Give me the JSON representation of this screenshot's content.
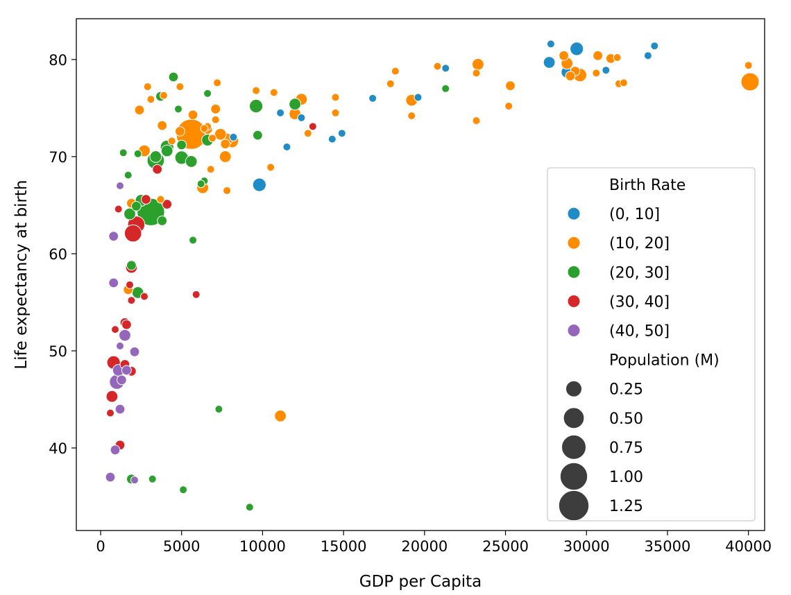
{
  "chart_data": {
    "type": "scatter",
    "title": "",
    "xlabel": "GDP per Capita",
    "ylabel": "Life expectancy at birth",
    "xlim": [
      -1500,
      41000
    ],
    "ylim": [
      31.5,
      84.2
    ],
    "xticks": [
      0,
      5000,
      10000,
      15000,
      20000,
      25000,
      30000,
      35000,
      40000
    ],
    "yticks": [
      40,
      50,
      60,
      70,
      80
    ],
    "grid": false,
    "legend_position": "lower-right",
    "legend": {
      "hue_title": "Birth Rate",
      "size_title": "Population (M)",
      "size_entries": [
        {
          "label": "0.25",
          "value": 0.25
        },
        {
          "label": "0.50",
          "value": 0.5
        },
        {
          "label": "0.75",
          "value": 0.75
        },
        {
          "label": "1.00",
          "value": 1.0
        },
        {
          "label": "1.25",
          "value": 1.25
        }
      ]
    },
    "series": [
      {
        "name": "(0, 10]",
        "color": "#1f8bc7",
        "points": [
          [
            27800,
            81.6,
            0.02
          ],
          [
            29400,
            81.1,
            0.15
          ],
          [
            34200,
            81.4,
            0.02
          ],
          [
            33800,
            80.4,
            0.02
          ],
          [
            27700,
            79.7,
            0.1
          ],
          [
            28800,
            78.7,
            0.1
          ],
          [
            31200,
            78.9,
            0.02
          ],
          [
            21300,
            79.1,
            0.02
          ],
          [
            19600,
            76.1,
            0.02
          ],
          [
            16800,
            76.0,
            0.02
          ],
          [
            14900,
            72.4,
            0.02
          ],
          [
            14300,
            71.8,
            0.02
          ],
          [
            11500,
            71.0,
            0.02
          ],
          [
            11100,
            74.5,
            0.02
          ],
          [
            12400,
            74.0,
            0.02
          ],
          [
            8200,
            72.0,
            0.02
          ],
          [
            9800,
            67.1,
            0.15
          ]
        ]
      },
      {
        "name": "(10, 20]",
        "color": "#ff8c00",
        "points": [
          [
            40100,
            77.7,
            0.35
          ],
          [
            40000,
            79.4,
            0.02
          ],
          [
            28600,
            80.4,
            0.05
          ],
          [
            28800,
            79.6,
            0.1
          ],
          [
            29600,
            78.4,
            0.15
          ],
          [
            29300,
            78.8,
            0.05
          ],
          [
            29000,
            78.3,
            0.05
          ],
          [
            30700,
            80.4,
            0.05
          ],
          [
            31500,
            80.1,
            0.05
          ],
          [
            31900,
            80.2,
            0.02
          ],
          [
            32000,
            77.5,
            0.02
          ],
          [
            32300,
            77.6,
            0.02
          ],
          [
            30600,
            78.6,
            0.02
          ],
          [
            23300,
            79.5,
            0.1
          ],
          [
            23200,
            78.6,
            0.02
          ],
          [
            20800,
            79.3,
            0.02
          ],
          [
            25300,
            77.3,
            0.05
          ],
          [
            25200,
            75.2,
            0.02
          ],
          [
            23200,
            73.7,
            0.02
          ],
          [
            19200,
            75.8,
            0.1
          ],
          [
            19200,
            74.2,
            0.02
          ],
          [
            18200,
            78.8,
            0.02
          ],
          [
            17900,
            77.5,
            0.02
          ],
          [
            14500,
            76.1,
            0.02
          ],
          [
            14500,
            74.5,
            0.02
          ],
          [
            12400,
            75.9,
            0.1
          ],
          [
            12000,
            74.4,
            0.1
          ],
          [
            12800,
            72.4,
            0.02
          ],
          [
            10700,
            76.6,
            0.02
          ],
          [
            9600,
            76.8,
            0.02
          ],
          [
            10500,
            68.9,
            0.02
          ],
          [
            11100,
            43.3,
            0.1
          ],
          [
            7200,
            77.6,
            0.02
          ],
          [
            7100,
            74.9,
            0.05
          ],
          [
            7100,
            73.8,
            0.02
          ],
          [
            7800,
            71.8,
            0.1
          ],
          [
            8100,
            71.6,
            0.15
          ],
          [
            7700,
            71.3,
            0.05
          ],
          [
            7400,
            72.3,
            0.1
          ],
          [
            6600,
            73.1,
            0.02
          ],
          [
            6600,
            72.8,
            0.05
          ],
          [
            6400,
            72.9,
            0.02
          ],
          [
            6900,
            71.9,
            0.02
          ],
          [
            6800,
            68.7,
            0.02
          ],
          [
            6300,
            66.8,
            0.1
          ],
          [
            7800,
            66.5,
            0.02
          ],
          [
            7700,
            70.0,
            0.1
          ],
          [
            5700,
            74.3,
            0.05
          ],
          [
            5600,
            72.3,
            1.25
          ],
          [
            4900,
            72.6,
            0.05
          ],
          [
            4900,
            77.2,
            0.02
          ],
          [
            4400,
            71.6,
            0.02
          ],
          [
            3800,
            73.2,
            0.05
          ],
          [
            3900,
            76.3,
            0.02
          ],
          [
            2900,
            77.2,
            0.02
          ],
          [
            3100,
            75.9,
            0.02
          ],
          [
            2400,
            74.8,
            0.05
          ],
          [
            2700,
            70.6,
            0.1
          ],
          [
            1900,
            65.2,
            0.05
          ],
          [
            3700,
            65.6,
            0.02
          ],
          [
            1700,
            56.3,
            0.05
          ]
        ]
      },
      {
        "name": "(20, 30]",
        "color": "#2ca02c",
        "points": [
          [
            4500,
            78.2,
            0.05
          ],
          [
            3700,
            76.2,
            0.05
          ],
          [
            6600,
            76.5,
            0.02
          ],
          [
            4800,
            74.9,
            0.02
          ],
          [
            3400,
            70.0,
            0.1
          ],
          [
            3400,
            69.6,
            0.3
          ],
          [
            4100,
            71.0,
            0.15
          ],
          [
            4100,
            70.6,
            0.1
          ],
          [
            5000,
            69.9,
            0.15
          ],
          [
            5600,
            69.5,
            0.1
          ],
          [
            5000,
            71.2,
            0.05
          ],
          [
            2300,
            70.3,
            0.02
          ],
          [
            1400,
            70.4,
            0.02
          ],
          [
            1700,
            68.1,
            0.02
          ],
          [
            6600,
            71.7,
            0.1
          ],
          [
            9600,
            75.2,
            0.15
          ],
          [
            12000,
            75.4,
            0.1
          ],
          [
            21300,
            77.0,
            0.02
          ],
          [
            9700,
            72.2,
            0.05
          ],
          [
            3100,
            64.3,
            1.0
          ],
          [
            2500,
            65.5,
            0.1
          ],
          [
            2200,
            64.9,
            0.05
          ],
          [
            1800,
            64.1,
            0.1
          ],
          [
            3800,
            63.4,
            0.05
          ],
          [
            6400,
            67.5,
            0.02
          ],
          [
            6200,
            67.2,
            0.02
          ],
          [
            1900,
            58.8,
            0.05
          ],
          [
            5700,
            61.4,
            0.02
          ],
          [
            2300,
            56.0,
            0.1
          ],
          [
            7300,
            44.0,
            0.02
          ],
          [
            1900,
            36.8,
            0.05
          ],
          [
            3200,
            36.8,
            0.02
          ],
          [
            5100,
            35.7,
            0.02
          ],
          [
            9200,
            33.9,
            0.02
          ]
        ]
      },
      {
        "name": "(30, 40]",
        "color": "#d62728",
        "points": [
          [
            13100,
            73.1,
            0.02
          ],
          [
            3500,
            68.7,
            0.05
          ],
          [
            4100,
            65.1,
            0.05
          ],
          [
            2800,
            65.6,
            0.05
          ],
          [
            1100,
            64.6,
            0.02
          ],
          [
            2200,
            63.0,
            0.3
          ],
          [
            2000,
            62.1,
            0.3
          ],
          [
            1900,
            58.6,
            0.1
          ],
          [
            1800,
            56.8,
            0.02
          ],
          [
            5900,
            55.8,
            0.02
          ],
          [
            1900,
            55.2,
            0.02
          ],
          [
            2700,
            55.6,
            0.02
          ],
          [
            1500,
            52.9,
            0.05
          ],
          [
            1600,
            52.7,
            0.05
          ],
          [
            900,
            52.2,
            0.02
          ],
          [
            800,
            48.8,
            0.15
          ],
          [
            1500,
            48.6,
            0.05
          ],
          [
            1900,
            47.9,
            0.05
          ],
          [
            700,
            45.3,
            0.1
          ],
          [
            600,
            43.6,
            0.02
          ],
          [
            1200,
            40.3,
            0.05
          ]
        ]
      },
      {
        "name": "(40, 50]",
        "color": "#9467bd",
        "points": [
          [
            1200,
            67.0,
            0.02
          ],
          [
            800,
            61.8,
            0.05
          ],
          [
            800,
            57.0,
            0.05
          ],
          [
            1500,
            51.6,
            0.1
          ],
          [
            1200,
            50.5,
            0.02
          ],
          [
            2100,
            49.9,
            0.05
          ],
          [
            1100,
            48.0,
            0.1
          ],
          [
            1600,
            48.0,
            0.05
          ],
          [
            1300,
            47.0,
            0.05
          ],
          [
            1000,
            46.8,
            0.2
          ],
          [
            1200,
            44.0,
            0.05
          ],
          [
            900,
            39.8,
            0.05
          ],
          [
            600,
            37.0,
            0.05
          ],
          [
            2100,
            36.7,
            0.02
          ]
        ]
      }
    ]
  }
}
